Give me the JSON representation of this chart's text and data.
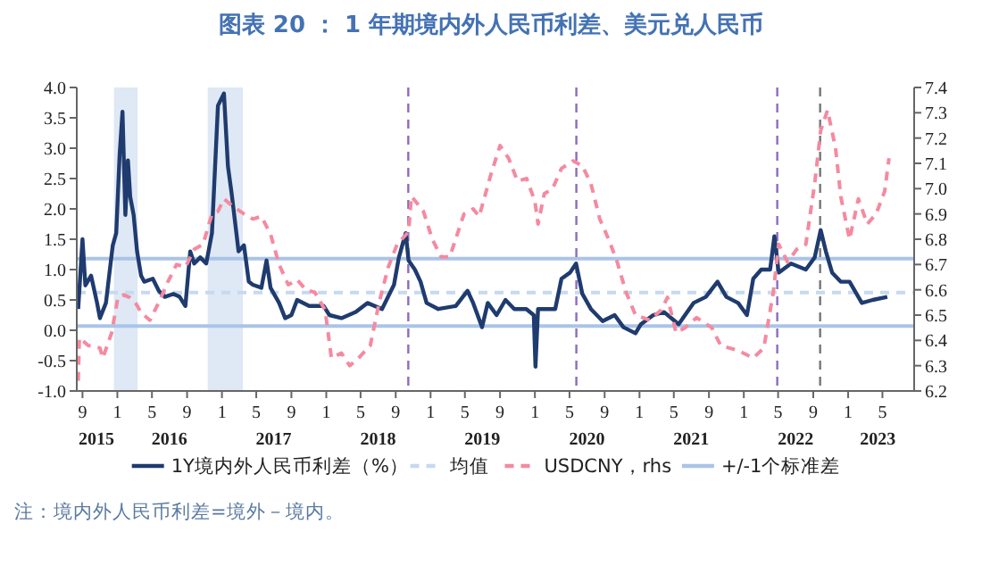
{
  "chart_data": {
    "type": "line",
    "title": "图表 20 ： 1 年期境内外人民币利差、美元兑人民币",
    "xlim": [
      "2015-08-12",
      "2023-08-20"
    ],
    "xticks": [
      {
        "value": "2015-09-01",
        "label": "9"
      },
      {
        "value": "2016-01-01",
        "label": "1"
      },
      {
        "value": "2016-05-01",
        "label": "5"
      },
      {
        "value": "2016-09-01",
        "label": "9"
      },
      {
        "value": "2017-01-01",
        "label": "1"
      },
      {
        "value": "2017-05-01",
        "label": "5"
      },
      {
        "value": "2017-09-01",
        "label": "9"
      },
      {
        "value": "2018-01-01",
        "label": "1"
      },
      {
        "value": "2018-05-01",
        "label": "5"
      },
      {
        "value": "2018-09-01",
        "label": "9"
      },
      {
        "value": "2019-01-01",
        "label": "1"
      },
      {
        "value": "2019-05-01",
        "label": "5"
      },
      {
        "value": "2019-09-01",
        "label": "9"
      },
      {
        "value": "2020-01-01",
        "label": "1"
      },
      {
        "value": "2020-05-01",
        "label": "5"
      },
      {
        "value": "2020-09-01",
        "label": "9"
      },
      {
        "value": "2021-01-01",
        "label": "1"
      },
      {
        "value": "2021-05-01",
        "label": "5"
      },
      {
        "value": "2021-09-01",
        "label": "9"
      },
      {
        "value": "2022-01-01",
        "label": "1"
      },
      {
        "value": "2022-05-01",
        "label": "5"
      },
      {
        "value": "2022-09-01",
        "label": "9"
      },
      {
        "value": "2023-01-01",
        "label": "1"
      },
      {
        "value": "2023-05-01",
        "label": "5"
      }
    ],
    "x2lim": [
      "2015-08-12",
      "2023-08-20"
    ],
    "x2ticks": [
      {
        "value": "2015-10-20",
        "label": "2015"
      },
      {
        "value": "2016-07-01",
        "label": "2016"
      },
      {
        "value": "2017-07-01",
        "label": "2017"
      },
      {
        "value": "2018-07-01",
        "label": "2018"
      },
      {
        "value": "2019-07-01",
        "label": "2019"
      },
      {
        "value": "2020-07-01",
        "label": "2020"
      },
      {
        "value": "2021-07-01",
        "label": "2021"
      },
      {
        "value": "2022-07-01",
        "label": "2022"
      },
      {
        "value": "2023-04-15",
        "label": "2023"
      }
    ],
    "ylim": [
      -1,
      4
    ],
    "yticks": [
      {
        "value": -1,
        "label": "-1.0"
      },
      {
        "value": -0.5,
        "label": "-0.5"
      },
      {
        "value": 0,
        "label": "0.0"
      },
      {
        "value": 0.5,
        "label": "0.5"
      },
      {
        "value": 1,
        "label": "1.0"
      },
      {
        "value": 1.5,
        "label": "1.5"
      },
      {
        "value": 2,
        "label": "2.0"
      },
      {
        "value": 2.5,
        "label": "2.5"
      },
      {
        "value": 3,
        "label": "3.0"
      },
      {
        "value": 3.5,
        "label": "3.5"
      },
      {
        "value": 4,
        "label": "4.0"
      }
    ],
    "y2lim": [
      6.2,
      7.4
    ],
    "y2ticks": [
      6.2,
      6.3,
      6.4,
      6.5,
      6.6,
      6.7,
      6.8,
      6.9,
      {
        "value": 7,
        "label": "7.0"
      },
      7.1,
      7.2,
      7.3,
      7.4
    ],
    "legend": "bottom",
    "series": [
      {
        "name": "1Y境内外人民币利差（%）",
        "color": "#1f3b6f",
        "line_style": "solid",
        "x": [
          "2015-08-17",
          "2015-09-01",
          "2015-09-11",
          "2015-10-01",
          "2015-10-22",
          "2015-11-01",
          "2015-11-22",
          "2015-12-02",
          "2015-12-16",
          "2015-12-28",
          "2016-01-09",
          "2016-01-19",
          "2016-01-29",
          "2016-02-07",
          "2016-02-15",
          "2016-02-27",
          "2016-03-10",
          "2016-03-24",
          "2016-04-04",
          "2016-05-04",
          "2016-05-25",
          "2016-06-15",
          "2016-07-15",
          "2016-08-06",
          "2016-08-26",
          "2016-09-12",
          "2016-09-26",
          "2016-10-17",
          "2016-11-07",
          "2016-11-27",
          "2016-12-18",
          "2017-01-08",
          "2017-01-22",
          "2017-02-04",
          "2017-02-18",
          "2017-02-28",
          "2017-03-19",
          "2017-04-05",
          "2017-04-19",
          "2017-05-19",
          "2017-06-06",
          "2017-06-20",
          "2017-07-20",
          "2017-08-10",
          "2017-09-01",
          "2017-09-21",
          "2017-11-02",
          "2017-12-23",
          "2018-01-12",
          "2018-02-23",
          "2018-04-14",
          "2018-05-25",
          "2018-07-15",
          "2018-08-26",
          "2018-09-12",
          "2018-10-06",
          "2018-10-16",
          "2018-11-07",
          "2018-11-27",
          "2018-12-18",
          "2019-01-28",
          "2019-03-30",
          "2019-05-10",
          "2019-05-30",
          "2019-06-30",
          "2019-07-20",
          "2019-08-20",
          "2019-09-20",
          "2019-10-21",
          "2019-12-02",
          "2019-12-28",
          "2020-01-03",
          "2020-01-12",
          "2020-03-12",
          "2020-04-03",
          "2020-05-03",
          "2020-05-24",
          "2020-06-15",
          "2020-07-15",
          "2020-08-25",
          "2020-10-06",
          "2020-11-06",
          "2020-12-18",
          "2021-01-06",
          "2021-02-18",
          "2021-03-28",
          "2021-05-18",
          "2021-07-09",
          "2021-08-21",
          "2021-10-01",
          "2021-11-01",
          "2021-12-12",
          "2022-01-12",
          "2022-02-03",
          "2022-03-03",
          "2022-04-03",
          "2022-04-18",
          "2022-05-03",
          "2022-06-15",
          "2022-08-06",
          "2022-09-06",
          "2022-09-27",
          "2022-10-15",
          "2022-11-06",
          "2022-12-06",
          "2023-01-06",
          "2023-02-18",
          "2023-03-28",
          "2023-05-18"
        ],
        "values": [
          0.35,
          1.5,
          0.74,
          0.9,
          0.45,
          0.2,
          0.45,
          0.85,
          1.4,
          1.6,
          2.9,
          3.6,
          1.9,
          2.8,
          2.2,
          1.9,
          1.3,
          0.9,
          0.8,
          0.85,
          0.65,
          0.55,
          0.6,
          0.55,
          0.4,
          1.3,
          1.1,
          1.2,
          1.1,
          1.6,
          3.7,
          3.9,
          2.7,
          2.25,
          1.7,
          1.3,
          1.4,
          0.8,
          0.75,
          0.7,
          1.15,
          0.7,
          0.45,
          0.2,
          0.25,
          0.5,
          0.4,
          0.4,
          0.25,
          0.2,
          0.3,
          0.45,
          0.35,
          0.75,
          1.2,
          1.6,
          1.15,
          1,
          0.8,
          0.45,
          0.35,
          0.4,
          0.65,
          0.45,
          0.05,
          0.45,
          0.25,
          0.5,
          0.35,
          0.35,
          0.25,
          -0.6,
          0.35,
          0.35,
          0.85,
          0.95,
          1.1,
          0.6,
          0.35,
          0.15,
          0.25,
          0.05,
          -0.05,
          0.1,
          0.25,
          0.3,
          0.1,
          0.45,
          0.55,
          0.8,
          0.55,
          0.45,
          0.25,
          0.85,
          1,
          1,
          1.55,
          0.95,
          1.1,
          1,
          1.2,
          1.65,
          1.3,
          0.95,
          0.8,
          0.8,
          0.45,
          0.5,
          0.55
        ]
      },
      {
        "name": "USDCNY，rhs",
        "color": "#f48aa0",
        "axis": "y2",
        "line_style": "dashed",
        "x": [
          "2015-08-17",
          "2015-08-21",
          "2015-09-21",
          "2015-11-01",
          "2015-11-11",
          "2015-12-12",
          "2016-01-03",
          "2016-01-23",
          "2016-02-13",
          "2016-03-04",
          "2016-03-24",
          "2016-04-24",
          "2016-05-25",
          "2016-06-25",
          "2016-07-26",
          "2016-08-26",
          "2016-09-26",
          "2016-10-27",
          "2016-11-27",
          "2016-12-18",
          "2017-01-08",
          "2017-02-08",
          "2017-03-19",
          "2017-04-19",
          "2017-05-19",
          "2017-06-20",
          "2017-07-20",
          "2017-08-21",
          "2017-09-21",
          "2017-10-22",
          "2017-11-22",
          "2017-12-28",
          "2018-01-19",
          "2018-02-23",
          "2018-03-24",
          "2018-04-24",
          "2018-06-04",
          "2018-07-05",
          "2018-08-06",
          "2018-09-06",
          "2018-10-16",
          "2018-10-26",
          "2018-12-07",
          "2019-01-07",
          "2019-02-07",
          "2019-03-09",
          "2019-04-28",
          "2019-05-30",
          "2019-06-20",
          "2019-08-01",
          "2019-09-01",
          "2019-10-01",
          "2019-11-01",
          "2019-12-03",
          "2020-01-01",
          "2020-01-12",
          "2020-02-03",
          "2020-03-03",
          "2020-04-03",
          "2020-05-14",
          "2020-06-15",
          "2020-07-15",
          "2020-08-15",
          "2020-09-15",
          "2020-10-15",
          "2020-11-15",
          "2020-12-18",
          "2021-02-06",
          "2021-03-18",
          "2021-04-09",
          "2021-05-09",
          "2021-06-09",
          "2021-07-20",
          "2021-09-11",
          "2021-10-12",
          "2021-12-12",
          "2022-02-03",
          "2022-03-12",
          "2022-04-14",
          "2022-05-03",
          "2022-06-03",
          "2022-07-05",
          "2022-08-06",
          "2022-09-06",
          "2022-09-27",
          "2022-10-21",
          "2022-11-18",
          "2022-12-06",
          "2023-01-06",
          "2023-02-06",
          "2023-03-09",
          "2023-04-09",
          "2023-05-09",
          "2023-05-24"
        ],
        "values": [
          6.24,
          6.41,
          6.38,
          6.37,
          6.33,
          6.43,
          6.57,
          6.58,
          6.57,
          6.55,
          6.51,
          6.48,
          6.55,
          6.63,
          6.7,
          6.69,
          6.76,
          6.78,
          6.9,
          6.91,
          6.96,
          6.93,
          6.9,
          6.88,
          6.89,
          6.82,
          6.7,
          6.62,
          6.64,
          6.6,
          6.59,
          6.52,
          6.33,
          6.35,
          6.3,
          6.33,
          6.38,
          6.55,
          6.69,
          6.78,
          6.83,
          6.97,
          6.91,
          6.8,
          6.73,
          6.73,
          6.9,
          6.92,
          6.89,
          7.06,
          7.17,
          7.12,
          7.03,
          7.04,
          6.95,
          6.86,
          6.98,
          7,
          7.08,
          7.11,
          7.09,
          7.02,
          6.88,
          6.8,
          6.71,
          6.59,
          6.5,
          6.48,
          6.52,
          6.57,
          6.43,
          6.45,
          6.49,
          6.45,
          6.38,
          6.36,
          6.33,
          6.37,
          6.59,
          6.78,
          6.71,
          6.76,
          6.78,
          7.02,
          7.23,
          7.31,
          7.16,
          6.97,
          6.8,
          6.96,
          6.86,
          6.9,
          6.99,
          7.12
        ]
      }
    ],
    "ref_lines": [
      {
        "axis": "y",
        "value": 0.62,
        "label": "均值",
        "color": "#c6d9f0",
        "line_style": "dashed"
      },
      {
        "axis": "y",
        "value": 1.18,
        "label": "+/-1个标准差",
        "color": "#aac4e8",
        "line_style": "solid"
      },
      {
        "axis": "y",
        "value": 0.07,
        "color": "#aac4e8",
        "line_style": "solid"
      },
      {
        "axis": "x",
        "value": "2018-10-15",
        "color": "#8b6cc0",
        "line_style": "dashed"
      },
      {
        "axis": "x",
        "value": "2020-05-25",
        "color": "#8b6cc0",
        "line_style": "dashed"
      },
      {
        "axis": "x",
        "value": "2022-04-28",
        "color": "#8b6cc0",
        "line_style": "dashed"
      },
      {
        "axis": "x",
        "value": "2022-09-25",
        "color": "#777777",
        "line_style": "dashed"
      }
    ],
    "bands": [
      {
        "axis": "x",
        "from": "2015-12-20",
        "to": "2016-03-12",
        "color": "#dfe8f5"
      },
      {
        "axis": "x",
        "from": "2016-11-12",
        "to": "2017-03-15",
        "color": "#dfe8f5"
      }
    ],
    "annotations": [
      "注：境内外人民币利差=境外－境内。"
    ]
  }
}
